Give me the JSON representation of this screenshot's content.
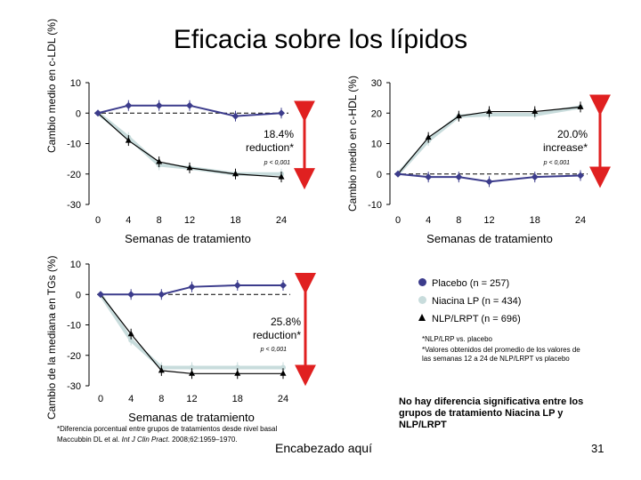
{
  "page": {
    "title": "Eficacia sobre los lípidos",
    "footer_center": "Encabezado aquí",
    "page_number": "31",
    "citation_prefix": "Maccubbin DL et al. ",
    "citation_journal": "Int J Clin Pract",
    "citation_suffix": ". 2008;62:1959–1970."
  },
  "colors": {
    "placebo": "#3c3c8c",
    "niacina": "#c8dcdc",
    "nlprpt": "#000000",
    "arrow": "#e02020",
    "dashed": "#000000"
  },
  "legend": {
    "placebo": "Placebo (n = 257)",
    "niacina": "Niacina LP (n = 434)",
    "nlprpt": "NLP/LRPT (n = 696)"
  },
  "notes": {
    "star1": "*NLP/LRP vs. placebo",
    "star2": "*Valores obtenidos del promedio de los valores de las semanas 12 a 24 de NLP/LRPT vs placebo",
    "bold": "No hay diferencia significativa entre los grupos de tratamiento Niacina LP y NLP/LRPT",
    "footnote": "*Diferencia porcentual entre grupos de tratamientos desde nivel basal"
  },
  "chart_data": [
    {
      "id": "ldl",
      "type": "line",
      "ylabel": "Cambio medio en c-LDL (%)",
      "xlabel": "Semanas de tratamiento",
      "x": [
        0,
        4,
        8,
        12,
        18,
        24
      ],
      "x_ticks": [
        "0",
        "4",
        "8",
        "12",
        "18",
        "24"
      ],
      "ylim": [
        -30,
        10
      ],
      "y_ticks": [
        "10",
        "0",
        "-10",
        "-20",
        "-30"
      ],
      "series": [
        {
          "name": "Placebo",
          "values": [
            0,
            2.5,
            2.5,
            2.5,
            -1,
            0
          ]
        },
        {
          "name": "Niacina LP",
          "values": [
            0,
            -8,
            -17,
            -18,
            -20,
            -20
          ]
        },
        {
          "name": "NLP/LRPT",
          "values": [
            0,
            -9,
            -16,
            -18,
            -20,
            -21
          ]
        }
      ],
      "annotation": "18.4% reduction*",
      "p_value": "p < 0,001"
    },
    {
      "id": "hdl",
      "type": "line",
      "ylabel": "Cambio medio en c-HDL (%)",
      "xlabel": "Semanas de tratamiento",
      "x": [
        0,
        4,
        8,
        12,
        18,
        24
      ],
      "x_ticks": [
        "0",
        "4",
        "8",
        "12",
        "18",
        "24"
      ],
      "ylim": [
        -10,
        30
      ],
      "y_ticks": [
        "30",
        "20",
        "10",
        "0",
        "-10"
      ],
      "series": [
        {
          "name": "Placebo",
          "values": [
            0,
            -1,
            -1,
            -2.5,
            -1,
            -0.5
          ]
        },
        {
          "name": "Niacina LP",
          "values": [
            0,
            11,
            19,
            19.5,
            19.5,
            22
          ]
        },
        {
          "name": "NLP/LRPT",
          "values": [
            0,
            12,
            19,
            20.5,
            20.5,
            22
          ]
        }
      ],
      "annotation": "20.0% increase*",
      "p_value": "p < 0,001"
    },
    {
      "id": "tg",
      "type": "line",
      "ylabel": "Cambio de la mediana en TGs (%)",
      "xlabel": "Semanas de tratamiento",
      "x": [
        0,
        4,
        8,
        12,
        18,
        24
      ],
      "x_ticks": [
        "0",
        "4",
        "8",
        "12",
        "18",
        "24"
      ],
      "ylim": [
        -30,
        10
      ],
      "y_ticks": [
        "10",
        "0",
        "-10",
        "-20",
        "-30"
      ],
      "series": [
        {
          "name": "Placebo",
          "values": [
            0,
            0,
            0,
            2.5,
            3,
            3
          ]
        },
        {
          "name": "Niacina LP",
          "values": [
            0,
            -15,
            -24,
            -24,
            -24,
            -24
          ]
        },
        {
          "name": "NLP/LRPT",
          "values": [
            0,
            -13,
            -25,
            -26,
            -26,
            -26
          ]
        }
      ],
      "annotation": "25.8% reduction*",
      "p_value": "p < 0,001"
    }
  ]
}
